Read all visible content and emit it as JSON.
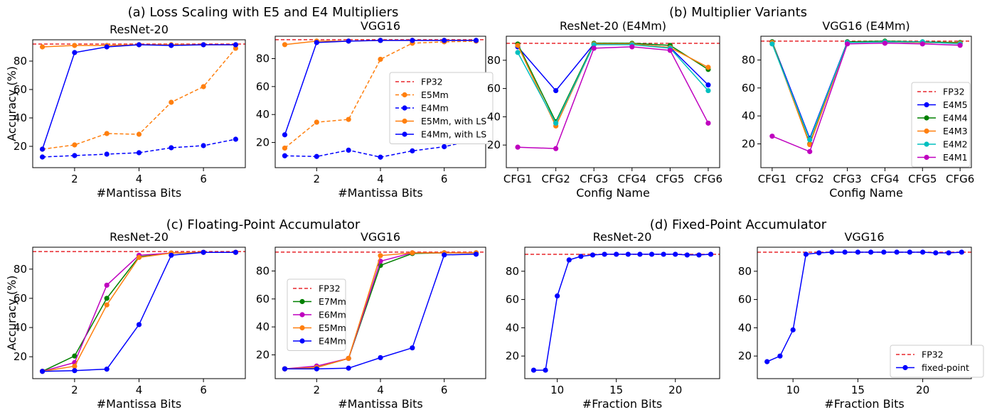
{
  "section_titles": [
    "(a) Loss Scaling with E5 and E4 Multipliers",
    "(b) Multiplier Variants",
    "(c) Floating-Point Accumulator",
    "(d) Fixed-Point Accumulator"
  ],
  "colors": {
    "red": "#e8262b",
    "orange": "#ff7f0e",
    "blue": "#0000ff",
    "green": "#008000",
    "cyan": "#00bfbf",
    "magenta": "#bf00bf"
  },
  "chart_data": [
    {
      "type": "line",
      "title": "ResNet-20",
      "xlabel": "#Mantissa Bits",
      "ylabel": "Accuracy (%)",
      "xlim": [
        0.7,
        7.3
      ],
      "ylim": [
        5,
        95
      ],
      "xticks": [
        2,
        4,
        6
      ],
      "yticks": [
        20,
        40,
        60,
        80
      ],
      "legend_position": "none",
      "baseline": {
        "name": "FP32",
        "value": 92
      },
      "x": [
        1,
        2,
        3,
        4,
        5,
        6,
        7
      ],
      "series": [
        {
          "name": "E5Mm",
          "dash": true,
          "color": "#ff7f0e",
          "values": [
            18,
            21,
            29,
            28.5,
            51,
            62,
            89
          ]
        },
        {
          "name": "E4Mm",
          "dash": true,
          "color": "#0000ff",
          "values": [
            12.5,
            13.5,
            14.5,
            15.5,
            19,
            20.5,
            25
          ]
        },
        {
          "name": "E5Mm, with LS",
          "dash": false,
          "color": "#ff7f0e",
          "values": [
            90,
            91,
            91,
            91.5,
            91.5,
            91.5,
            91.5
          ]
        },
        {
          "name": "E4Mm, with LS",
          "dash": false,
          "color": "#0000ff",
          "values": [
            18,
            86,
            90,
            91.5,
            91,
            91.5,
            91.5
          ]
        }
      ]
    },
    {
      "type": "line",
      "title": "VGG16",
      "xlabel": "#Mantissa Bits",
      "ylabel": "",
      "xlim": [
        0.7,
        7.3
      ],
      "ylim": [
        2,
        96
      ],
      "xticks": [
        2,
        4,
        6
      ],
      "yticks": [
        20,
        40,
        60,
        80
      ],
      "legend_position": "center-right",
      "baseline": {
        "name": "FP32",
        "value": 93.5
      },
      "x": [
        1,
        2,
        3,
        4,
        5,
        6,
        7
      ],
      "series": [
        {
          "name": "E5Mm",
          "dash": true,
          "color": "#ff7f0e",
          "values": [
            16,
            34.5,
            36.5,
            79.5,
            91,
            92,
            92.5
          ]
        },
        {
          "name": "E4Mm",
          "dash": true,
          "color": "#0000ff",
          "values": [
            10.5,
            10,
            14.5,
            9.5,
            14,
            17,
            22
          ]
        },
        {
          "name": "E5Mm, with LS",
          "dash": false,
          "color": "#ff7f0e",
          "values": [
            90,
            92.5,
            92.5,
            93,
            93,
            93,
            93
          ]
        },
        {
          "name": "E4Mm, with LS",
          "dash": false,
          "color": "#0000ff",
          "values": [
            25.5,
            91.5,
            92.5,
            93,
            93,
            93,
            93
          ]
        }
      ]
    },
    {
      "type": "line",
      "title": "ResNet-20 (E4Mm)",
      "xlabel": "Config Name",
      "ylabel": "",
      "categories": [
        "CFG1",
        "CFG2",
        "CFG3",
        "CFG4",
        "CFG5",
        "CFG6"
      ],
      "xlim": [
        0.7,
        6.3
      ],
      "ylim": [
        4,
        97
      ],
      "yticks": [
        20,
        40,
        60,
        80
      ],
      "legend_position": "none",
      "baseline": {
        "name": "FP32",
        "value": 92
      },
      "series": [
        {
          "name": "E4M5",
          "color": "#0000ff",
          "values": [
            89.5,
            58.5,
            91.5,
            91.5,
            89,
            62.5
          ]
        },
        {
          "name": "E4M4",
          "color": "#008000",
          "values": [
            91.5,
            36.5,
            92,
            92,
            90.5,
            73.5
          ]
        },
        {
          "name": "E4M3",
          "color": "#ff7f0e",
          "values": [
            90.5,
            33.5,
            91.5,
            91.5,
            89,
            75
          ]
        },
        {
          "name": "E4M2",
          "color": "#00bfbf",
          "values": [
            85.5,
            35.5,
            91,
            91,
            88.5,
            58.5
          ]
        },
        {
          "name": "E4M1",
          "color": "#bf00bf",
          "values": [
            18.5,
            17.5,
            88.5,
            89.5,
            87,
            35.5
          ]
        }
      ]
    },
    {
      "type": "line",
      "title": "VGG16 (E4Mm)",
      "xlabel": "Config Name",
      "ylabel": "",
      "categories": [
        "CFG1",
        "CFG2",
        "CFG3",
        "CFG4",
        "CFG5",
        "CFG6"
      ],
      "xlim": [
        0.7,
        6.3
      ],
      "ylim": [
        3,
        97
      ],
      "yticks": [
        20,
        40,
        60,
        80
      ],
      "legend_position": "center-right",
      "baseline": {
        "name": "FP32",
        "value": 93.5
      },
      "series": [
        {
          "name": "E4M5",
          "color": "#0000ff",
          "values": [
            93,
            24,
            93,
            93,
            92.5,
            92
          ]
        },
        {
          "name": "E4M4",
          "color": "#008000",
          "values": [
            93,
            20,
            93,
            93.5,
            93,
            92.5
          ]
        },
        {
          "name": "E4M3",
          "color": "#ff7f0e",
          "values": [
            92.5,
            19.5,
            92.5,
            93,
            92.5,
            92
          ]
        },
        {
          "name": "E4M2",
          "color": "#00bfbf",
          "values": [
            91.5,
            23,
            92.5,
            93,
            93,
            91.5
          ]
        },
        {
          "name": "E4M1",
          "color": "#bf00bf",
          "values": [
            25.5,
            14.5,
            91.5,
            92,
            91.5,
            90.5
          ]
        }
      ]
    },
    {
      "type": "line",
      "title": "ResNet-20",
      "xlabel": "#Mantissa Bits",
      "ylabel": "Accuracy (%)",
      "xlim": [
        0.7,
        7.3
      ],
      "ylim": [
        5,
        95
      ],
      "xticks": [
        2,
        4,
        6
      ],
      "yticks": [
        20,
        40,
        60,
        80
      ],
      "legend_position": "none",
      "baseline": {
        "name": "FP32",
        "value": 92
      },
      "x": [
        1,
        2,
        3,
        4,
        5,
        6,
        7
      ],
      "series": [
        {
          "name": "E7Mm",
          "color": "#008000",
          "values": [
            10,
            20.5,
            60,
            88.5,
            91,
            91.5,
            91.5
          ]
        },
        {
          "name": "E6Mm",
          "color": "#bf00bf",
          "values": [
            10,
            16,
            69,
            89.5,
            91,
            91.5,
            91.5
          ]
        },
        {
          "name": "E5Mm",
          "color": "#ff7f0e",
          "values": [
            10,
            13.5,
            55.5,
            88,
            91,
            91.5,
            91.5
          ]
        },
        {
          "name": "E4Mm",
          "color": "#0000ff",
          "values": [
            10,
            10.5,
            11.5,
            42,
            89.5,
            91.5,
            91.5
          ]
        }
      ]
    },
    {
      "type": "line",
      "title": "VGG16",
      "xlabel": "#Mantissa Bits",
      "ylabel": "",
      "xlim": [
        0.7,
        7.3
      ],
      "ylim": [
        3,
        97
      ],
      "xticks": [
        2,
        4,
        6
      ],
      "yticks": [
        20,
        40,
        60,
        80
      ],
      "legend_position": "center-left",
      "baseline": {
        "name": "FP32",
        "value": 93.5
      },
      "x": [
        1,
        2,
        3,
        4,
        5,
        6,
        7
      ],
      "series": [
        {
          "name": "E7Mm",
          "color": "#008000",
          "values": [
            10,
            11,
            17.5,
            84,
            92.5,
            93,
            93
          ]
        },
        {
          "name": "E6Mm",
          "color": "#bf00bf",
          "values": [
            10,
            12,
            17.5,
            87,
            93,
            93,
            93
          ]
        },
        {
          "name": "E5Mm",
          "color": "#ff7f0e",
          "values": [
            10,
            11,
            17.5,
            91,
            93,
            93,
            93
          ]
        },
        {
          "name": "E4Mm",
          "color": "#0000ff",
          "values": [
            10,
            10,
            10.5,
            18,
            25,
            91.5,
            92
          ]
        }
      ]
    },
    {
      "type": "line",
      "title": "ResNet-20",
      "xlabel": "#Fraction Bits",
      "ylabel": "",
      "xlim": [
        7.25,
        23.75
      ],
      "ylim": [
        4,
        97
      ],
      "xticks": [
        10,
        15,
        20
      ],
      "yticks": [
        20,
        40,
        60,
        80
      ],
      "legend_position": "none",
      "baseline": {
        "name": "FP32",
        "value": 92
      },
      "x": [
        8,
        9,
        10,
        11,
        12,
        13,
        14,
        15,
        16,
        17,
        18,
        19,
        20,
        21,
        22,
        23
      ],
      "series": [
        {
          "name": "fixed-point",
          "color": "#0000ff",
          "values": [
            10,
            10,
            62.5,
            88,
            90.5,
            91.5,
            92,
            92,
            92,
            92,
            92,
            92,
            92,
            91.5,
            91.5,
            92
          ]
        }
      ]
    },
    {
      "type": "line",
      "title": "VGG16",
      "xlabel": "#Fraction Bits",
      "ylabel": "",
      "xlim": [
        7.25,
        23.75
      ],
      "ylim": [
        4,
        97
      ],
      "xticks": [
        10,
        15,
        20
      ],
      "yticks": [
        20,
        40,
        60,
        80
      ],
      "legend_position": "bottom-right",
      "baseline": {
        "name": "FP32",
        "value": 93.5
      },
      "x": [
        8,
        9,
        10,
        11,
        12,
        13,
        14,
        15,
        16,
        17,
        18,
        19,
        20,
        21,
        22,
        23
      ],
      "series": [
        {
          "name": "fixed-point",
          "color": "#0000ff",
          "values": [
            16,
            20,
            38.5,
            92,
            93,
            93.5,
            93.5,
            93.5,
            93.5,
            93.5,
            93.5,
            93.5,
            93.5,
            93,
            93,
            93.5
          ]
        }
      ]
    }
  ]
}
